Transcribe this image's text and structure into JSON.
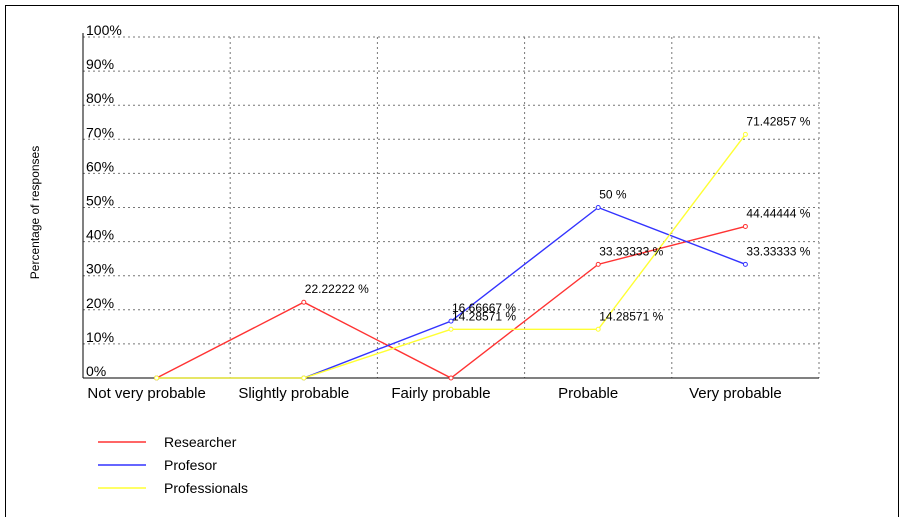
{
  "chart_data": {
    "type": "line",
    "categories": [
      "Not very probable",
      "Slightly probable",
      "Fairly probable",
      "Probable",
      "Very probable"
    ],
    "ylabel": "Percentage of responses",
    "ylim": [
      0,
      100
    ],
    "yticks": [
      "0%",
      "10%",
      "20%",
      "30%",
      "40%",
      "50%",
      "60%",
      "70%",
      "80%",
      "90%",
      "100%"
    ],
    "grid": true,
    "legend_position": "bottom-left",
    "series": [
      {
        "name": "Researcher",
        "color": "#ff3333",
        "values": [
          0,
          22.22222,
          0,
          33.33333,
          44.44444
        ],
        "labels": [
          "",
          "22.22222 %",
          "",
          "33.33333 %",
          "44.44444 %"
        ]
      },
      {
        "name": "Profesor",
        "color": "#3333ff",
        "values": [
          0,
          0,
          16.66667,
          50,
          33.33333
        ],
        "labels": [
          "",
          "",
          "16.66667 %",
          "50 %",
          "33.33333 %"
        ]
      },
      {
        "name": "Professionals",
        "color": "#ffff33",
        "values": [
          0,
          0,
          14.28571,
          14.28571,
          71.42857
        ],
        "labels": [
          "",
          "",
          "14.28571 %",
          "14.28571 %",
          "71.42857 %"
        ]
      }
    ]
  }
}
